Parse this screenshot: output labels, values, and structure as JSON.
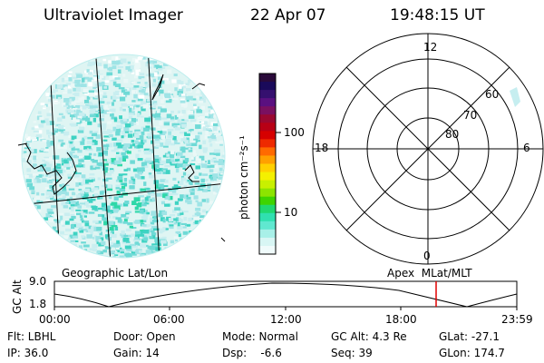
{
  "header": {
    "title": "Ultraviolet Imager",
    "date": "22 Apr 07",
    "time": "19:48:15 UT"
  },
  "colorbar": {
    "label": "photon cm⁻²s⁻¹",
    "ticks": [
      "100",
      "10"
    ],
    "colors": [
      "#2a0a3a",
      "#1a0a5a",
      "#35106f",
      "#5a1080",
      "#7a1060",
      "#9a0830",
      "#b80015",
      "#d60000",
      "#ee2a00",
      "#ff6a00",
      "#ffa000",
      "#ffd000",
      "#f4f000",
      "#c8f000",
      "#8ce400",
      "#3ed400",
      "#20d870",
      "#30e0b0",
      "#60e8d0",
      "#a8f0e8",
      "#d8f6f4",
      "#f0fbfb"
    ]
  },
  "polar": {
    "labels": {
      "top": "12",
      "left": "18",
      "right": "6",
      "bottom": "0"
    },
    "rings": [
      "60",
      "70",
      "80"
    ]
  },
  "timeline": {
    "left_label": "Geographic Lat/Lon",
    "right_label": "Apex  MLat/MLT",
    "axis_title": "GC Alt",
    "y_top": "9.0",
    "y_bottom": "1.8",
    "ticks": [
      "00:00",
      "06:00",
      "12:00",
      "18:00",
      "23:59"
    ],
    "marker_color": "#e00000"
  },
  "info": {
    "flt": "Flt: LBHL",
    "ip": "IP: 36.0",
    "door": "Door: Open",
    "gain": "Gain: 14",
    "mode": "Mode: Normal",
    "dsp": "Dsp:    -6.6",
    "gcalt": "GC Alt: 4.3 Re",
    "seq": "Seq: 39",
    "glat": "GLat: -27.1",
    "glon": "GLon: 174.7"
  }
}
